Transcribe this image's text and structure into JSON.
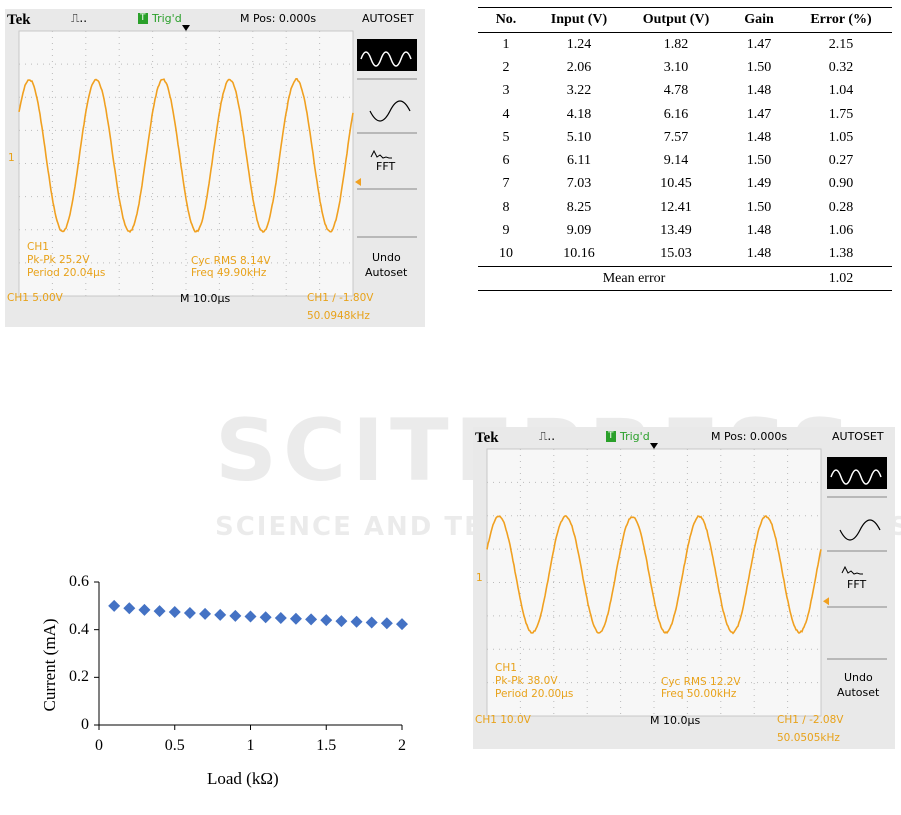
{
  "scope1": {
    "brand": "Tek",
    "trig_badge": "T",
    "trig_status": "Trig'd",
    "mpos": "M Pos: 0.000s",
    "autoset": "AUTOSET",
    "ch_marker": "1",
    "menu_fft": "FFT",
    "undo": "Undo",
    "autoset2": "Autoset",
    "ch": "CH1",
    "pkpk": "Pk-Pk 25.2V",
    "period": "Period 20.04µs",
    "cycrms": "Cyc RMS 8.14V",
    "freq": "Freq 49.90kHz",
    "ch_scale": "CH1  5.00V",
    "timebase": "M 10.0µs",
    "trig_info": "CH1 ∕ -1.80V",
    "trig_freq": "50.0948kHz",
    "wave_color": "#f0a020"
  },
  "scope2": {
    "brand": "Tek",
    "trig_badge": "T",
    "trig_status": "Trig'd",
    "mpos": "M Pos: 0.000s",
    "autoset": "AUTOSET",
    "ch_marker": "1",
    "menu_fft": "FFT",
    "undo": "Undo",
    "autoset2": "Autoset",
    "ch": "CH1",
    "pkpk": "Pk-Pk 38.0V",
    "period": "Period 20.00µs",
    "cycrms": "Cyc RMS 12.2V",
    "freq": "Freq 50.00kHz",
    "ch_scale": "CH1  10.0V",
    "timebase": "M 10.0µs",
    "trig_info": "CH1 ∕ -2.08V",
    "trig_freq": "50.0505kHz",
    "wave_color": "#f0a020"
  },
  "table": {
    "headers": [
      "No.",
      "Input (V)",
      "Output (V)",
      "Gain",
      "Error (%)"
    ],
    "rows": [
      [
        "1",
        "1.24",
        "1.82",
        "1.47",
        "2.15"
      ],
      [
        "2",
        "2.06",
        "3.10",
        "1.50",
        "0.32"
      ],
      [
        "3",
        "3.22",
        "4.78",
        "1.48",
        "1.04"
      ],
      [
        "4",
        "4.18",
        "6.16",
        "1.47",
        "1.75"
      ],
      [
        "5",
        "5.10",
        "7.57",
        "1.48",
        "1.05"
      ],
      [
        "6",
        "6.11",
        "9.14",
        "1.50",
        "0.27"
      ],
      [
        "7",
        "7.03",
        "10.45",
        "1.49",
        "0.90"
      ],
      [
        "8",
        "8.25",
        "12.41",
        "1.50",
        "0.28"
      ],
      [
        "9",
        "9.09",
        "13.49",
        "1.48",
        "1.06"
      ],
      [
        "10",
        "10.16",
        "15.03",
        "1.48",
        "1.38"
      ]
    ],
    "mean_label": "Mean error",
    "mean_value": "1.02"
  },
  "watermark": {
    "big": "SCITEPRESS",
    "small": "SCIENCE AND TECHNOLOGY PUBLICATIONS"
  },
  "chart_data": [
    {
      "type": "scatter",
      "title": "",
      "xlabel": "Load (kΩ)",
      "ylabel": "Current (mA)",
      "xlim": [
        0,
        2
      ],
      "ylim": [
        0,
        0.6
      ],
      "xticks": [
        "0",
        "0.5",
        "1",
        "1.5",
        "2"
      ],
      "yticks": [
        "0",
        "0.2",
        "0.4",
        "0.6"
      ],
      "marker": "diamond",
      "color": "#4472c4",
      "grid": false,
      "x": [
        0.1,
        0.2,
        0.3,
        0.4,
        0.5,
        0.6,
        0.7,
        0.8,
        0.9,
        1.0,
        1.1,
        1.2,
        1.3,
        1.4,
        1.5,
        1.6,
        1.7,
        1.8,
        1.9,
        2.0
      ],
      "y": [
        0.5,
        0.49,
        0.483,
        0.478,
        0.474,
        0.47,
        0.466,
        0.462,
        0.458,
        0.455,
        0.452,
        0.449,
        0.446,
        0.443,
        0.44,
        0.436,
        0.433,
        0.43,
        0.427,
        0.423
      ]
    }
  ]
}
